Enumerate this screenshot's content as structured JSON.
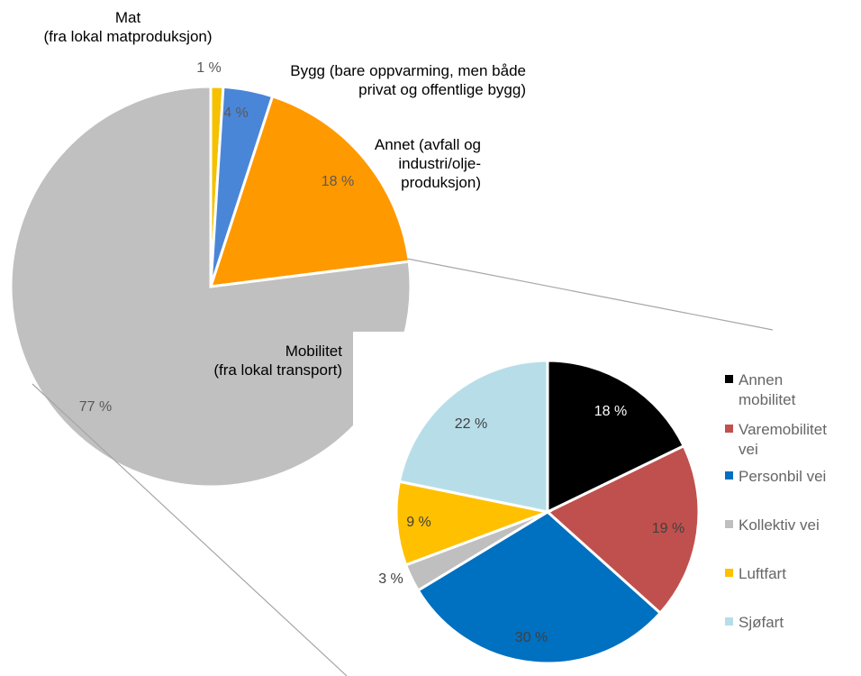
{
  "chart_data": [
    {
      "type": "pie",
      "categories": [
        "Mat",
        "Bygg",
        "Annet",
        "Mobilitet"
      ],
      "values": [
        1,
        4,
        18,
        77
      ],
      "value_labels": [
        "1 %",
        "4 %",
        "18 %",
        "77 %"
      ],
      "category_labels": [
        [
          "Mat",
          "(fra lokal matproduksjon)"
        ],
        [
          "Bygg (bare oppvarming, men både",
          "privat og offentlige bygg)"
        ],
        [
          "Annet (avfall og",
          "industri/olje-",
          "produksjon)"
        ],
        [
          "Mobilitet",
          "(fra lokal transport)"
        ]
      ],
      "colors": [
        "#F5C000",
        "#4A86D8",
        "#FF9900",
        "#C0C0C0"
      ],
      "legend": "none",
      "title": ""
    },
    {
      "type": "pie",
      "categories": [
        "Annen mobilitet",
        "Varemobilitet vei",
        "Personbil vei",
        "Kollektiv vei",
        "Luftfart",
        "Sjøfart"
      ],
      "values": [
        18,
        19,
        30,
        3,
        9,
        22
      ],
      "value_labels": [
        "18 %",
        "19 %",
        "30 %",
        "3 %",
        "9 %",
        "22 %"
      ],
      "legend_entries": [
        [
          "Annen",
          "mobilitet"
        ],
        [
          "Varemobilitet",
          "vei"
        ],
        [
          "Personbil vei"
        ],
        [
          "Kollektiv vei"
        ],
        [
          "Luftfart"
        ],
        [
          "Sjøfart"
        ]
      ],
      "colors": [
        "#000000",
        "#C0504D",
        "#0070C0",
        "#BFBFBF",
        "#FFC000",
        "#B7DEE8"
      ],
      "label_colors": [
        "#FFFFFF",
        "#404040",
        "#404040",
        "#404040",
        "#404040",
        "#404040"
      ],
      "legend": "right",
      "title": ""
    }
  ]
}
